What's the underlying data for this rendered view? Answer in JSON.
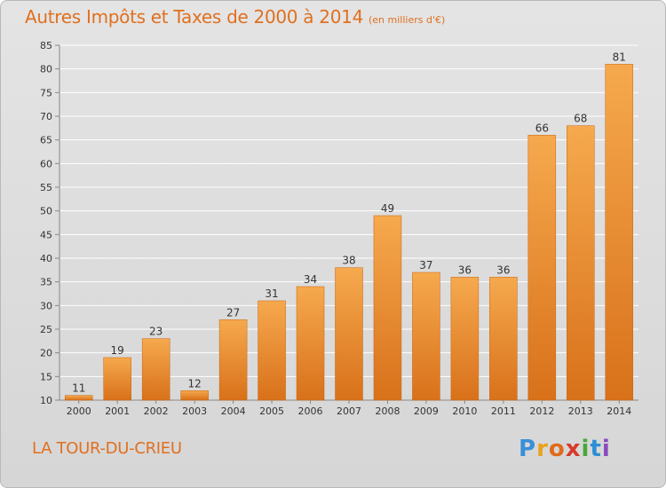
{
  "header": {
    "title": "Autres Impôts et Taxes de 2000 à 2014",
    "unit": "(en milliers d'€)"
  },
  "footer": {
    "commune": "LA TOUR-DU-CRIEU",
    "logo_letters": [
      "P",
      "r",
      "o",
      "x",
      "i",
      "t",
      "i"
    ],
    "logo_colors": [
      "#3a8fd8",
      "#e8a21c",
      "#e06a1a",
      "#d83a2a",
      "#48a83a",
      "#2b8fd4",
      "#8a4cc0"
    ]
  },
  "colors": {
    "bar_light": "#f6a94e",
    "bar_dark": "#d8711a",
    "accent": "#e07020",
    "grid": "#ffffff"
  },
  "chart_data": {
    "type": "bar",
    "title": "Autres Impôts et Taxes de 2000 à 2014",
    "subtitle": "(en milliers d'€)",
    "xlabel": "",
    "ylabel": "",
    "categories": [
      "2000",
      "2001",
      "2002",
      "2003",
      "2004",
      "2005",
      "2006",
      "2007",
      "2008",
      "2009",
      "2010",
      "2011",
      "2012",
      "2013",
      "2014"
    ],
    "values": [
      11,
      19,
      23,
      12,
      27,
      31,
      34,
      38,
      49,
      37,
      36,
      36,
      66,
      68,
      81
    ],
    "data_labels": [
      "11",
      "19",
      "23",
      "12",
      "27",
      "31",
      "34",
      "38",
      "49",
      "37",
      "36",
      "36",
      "66",
      "68",
      "81"
    ],
    "ylim": [
      10,
      85
    ],
    "yticks": [
      10,
      15,
      20,
      25,
      30,
      35,
      40,
      45,
      50,
      55,
      60,
      65,
      70,
      75,
      80,
      85
    ],
    "grid": true,
    "legend": "none"
  }
}
